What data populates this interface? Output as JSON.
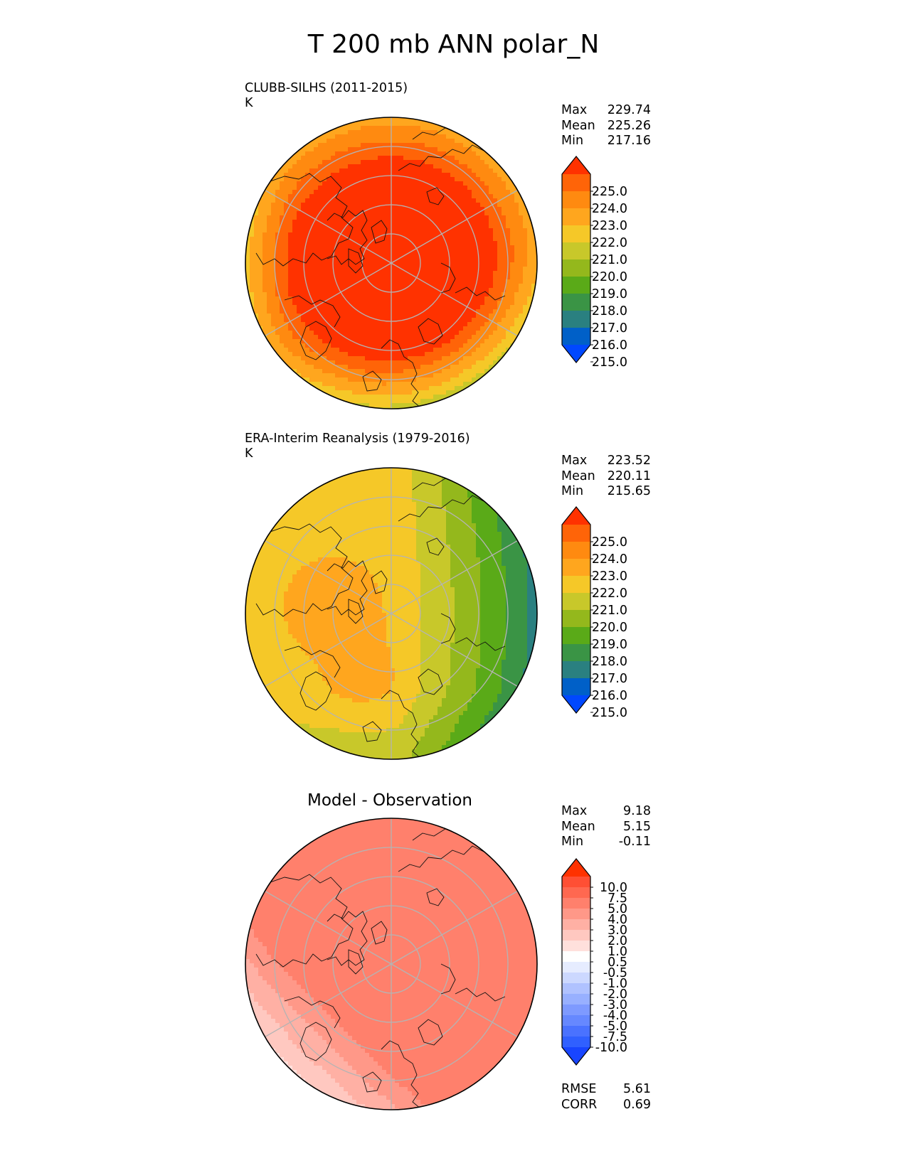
{
  "title": "T 200 mb ANN polar_N",
  "panels": [
    {
      "title": "CLUBB-SILHS (2011-2015)",
      "units": "K",
      "stats": [
        {
          "label": "Max",
          "value": "229.74"
        },
        {
          "label": "Mean",
          "value": "225.26"
        },
        {
          "label": "Min",
          "value": "217.16"
        }
      ],
      "colorbar": {
        "ticks": [
          "225.0",
          "224.0",
          "223.0",
          "222.0",
          "221.0",
          "220.0",
          "219.0",
          "218.0",
          "217.0",
          "216.0",
          "215.0"
        ],
        "colors": [
          "#0048ff",
          "#0060c8",
          "#2a8080",
          "#3a9445",
          "#5aaa18",
          "#94b81c",
          "#c8c82a",
          "#f5c828",
          "#ffa61e",
          "#ff8a10",
          "#ff6408",
          "#ff3200"
        ]
      }
    },
    {
      "title": "ERA-Interim Reanalysis (1979-2016)",
      "units": "K",
      "stats": [
        {
          "label": "Max",
          "value": "223.52"
        },
        {
          "label": "Mean",
          "value": "220.11"
        },
        {
          "label": "Min",
          "value": "215.65"
        }
      ],
      "colorbar": {
        "ticks": [
          "225.0",
          "224.0",
          "223.0",
          "222.0",
          "221.0",
          "220.0",
          "219.0",
          "218.0",
          "217.0",
          "216.0",
          "215.0"
        ],
        "colors": [
          "#0048ff",
          "#0060c8",
          "#2a8080",
          "#3a9445",
          "#5aaa18",
          "#94b81c",
          "#c8c82a",
          "#f5c828",
          "#ffa61e",
          "#ff8a10",
          "#ff6408",
          "#ff3200"
        ]
      }
    },
    {
      "title": "Model - Observation",
      "stats": [
        {
          "label": "Max",
          "value": "9.18"
        },
        {
          "label": "Mean",
          "value": "5.15"
        },
        {
          "label": "Min",
          "value": "-0.11"
        }
      ],
      "colorbar": {
        "ticks": [
          "10.0",
          "7.5",
          "5.0",
          "4.0",
          "3.0",
          "2.0",
          "1.0",
          "0.5",
          "-0.5",
          "-1.0",
          "-2.0",
          "-3.0",
          "-4.0",
          "-5.0",
          "-7.5",
          "-10.0"
        ],
        "colors": [
          "#1845ff",
          "#3060ff",
          "#4a72ff",
          "#6688ff",
          "#7e9aff",
          "#98b0ff",
          "#b0c2ff",
          "#ccd8ff",
          "#e6ecff",
          "#ffffff",
          "#ffe0dc",
          "#ffc8c0",
          "#ffb0a4",
          "#ff9888",
          "#ff806c",
          "#ff6850",
          "#ff4f34",
          "#ff3200"
        ]
      },
      "metrics": [
        {
          "label": "RMSE",
          "value": "5.61"
        },
        {
          "label": "CORR",
          "value": "0.69"
        }
      ]
    }
  ],
  "chart_data": [
    {
      "type": "heatmap",
      "projection": "north polar stereographic",
      "title": "CLUBB-SILHS (2011-2015)",
      "units": "K",
      "levels": [
        215,
        216,
        217,
        218,
        219,
        220,
        221,
        222,
        223,
        224,
        225
      ],
      "extend": "both",
      "max": 229.74,
      "mean": 225.26,
      "min": 217.16
    },
    {
      "type": "heatmap",
      "projection": "north polar stereographic",
      "title": "ERA-Interim Reanalysis (1979-2016)",
      "units": "K",
      "levels": [
        215,
        216,
        217,
        218,
        219,
        220,
        221,
        222,
        223,
        224,
        225
      ],
      "extend": "both",
      "max": 223.52,
      "mean": 220.11,
      "min": 215.65
    },
    {
      "type": "heatmap",
      "projection": "north polar stereographic",
      "title": "Model - Observation",
      "levels": [
        -10,
        -7.5,
        -5,
        -4,
        -3,
        -2,
        -1,
        -0.5,
        0.5,
        1,
        2,
        3,
        4,
        5,
        7.5,
        10
      ],
      "extend": "both",
      "max": 9.18,
      "mean": 5.15,
      "min": -0.11,
      "rmse": 5.61,
      "corr": 0.69
    }
  ]
}
